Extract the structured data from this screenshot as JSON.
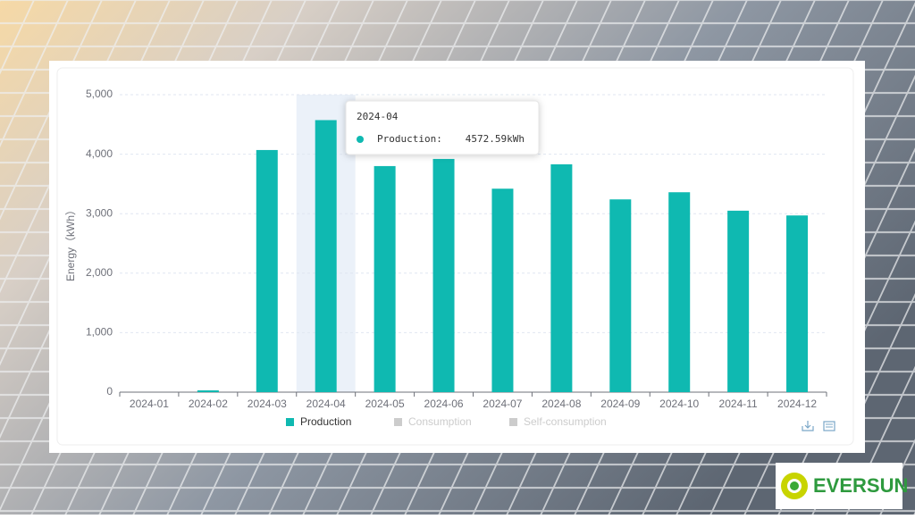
{
  "chart_data": {
    "type": "bar",
    "y_axis_label": "Energy（kWh）",
    "categories": [
      "2024-01",
      "2024-02",
      "2024-03",
      "2024-04",
      "2024-05",
      "2024-06",
      "2024-07",
      "2024-08",
      "2024-09",
      "2024-10",
      "2024-11",
      "2024-12"
    ],
    "series": [
      {
        "name": "Production",
        "color": "#0fb9b1",
        "visible": true,
        "values": [
          0,
          30,
          4070,
          4572.59,
          3800,
          3920,
          3420,
          3830,
          3240,
          3360,
          3050,
          2970
        ],
        "value_labels": [
          null,
          null,
          null,
          "4572.59kWh",
          null,
          null,
          null,
          null,
          null,
          null,
          null,
          null
        ]
      },
      {
        "name": "Consumption",
        "color": "#cccccc",
        "visible": false,
        "values": [
          null,
          null,
          null,
          null,
          null,
          null,
          null,
          null,
          null,
          null,
          null,
          null
        ]
      },
      {
        "name": "Self-consumption",
        "color": "#cccccc",
        "visible": false,
        "values": [
          null,
          null,
          null,
          null,
          null,
          null,
          null,
          null,
          null,
          null,
          null,
          null
        ]
      }
    ],
    "ylim": [
      0,
      5000
    ],
    "yticks": [
      0,
      {
        "value": 1000,
        "label": "1,000"
      },
      {
        "value": 2000,
        "label": "2,000"
      },
      {
        "value": 3000,
        "label": "3,000"
      },
      {
        "value": 4000,
        "label": "4,000"
      },
      {
        "value": 5000,
        "label": "5,000"
      }
    ],
    "grid": true,
    "legend": "bottom",
    "tooltip": {
      "category_index": 3,
      "series_index": 0,
      "series_label": "Production:"
    }
  },
  "brand": "EVERSUN"
}
